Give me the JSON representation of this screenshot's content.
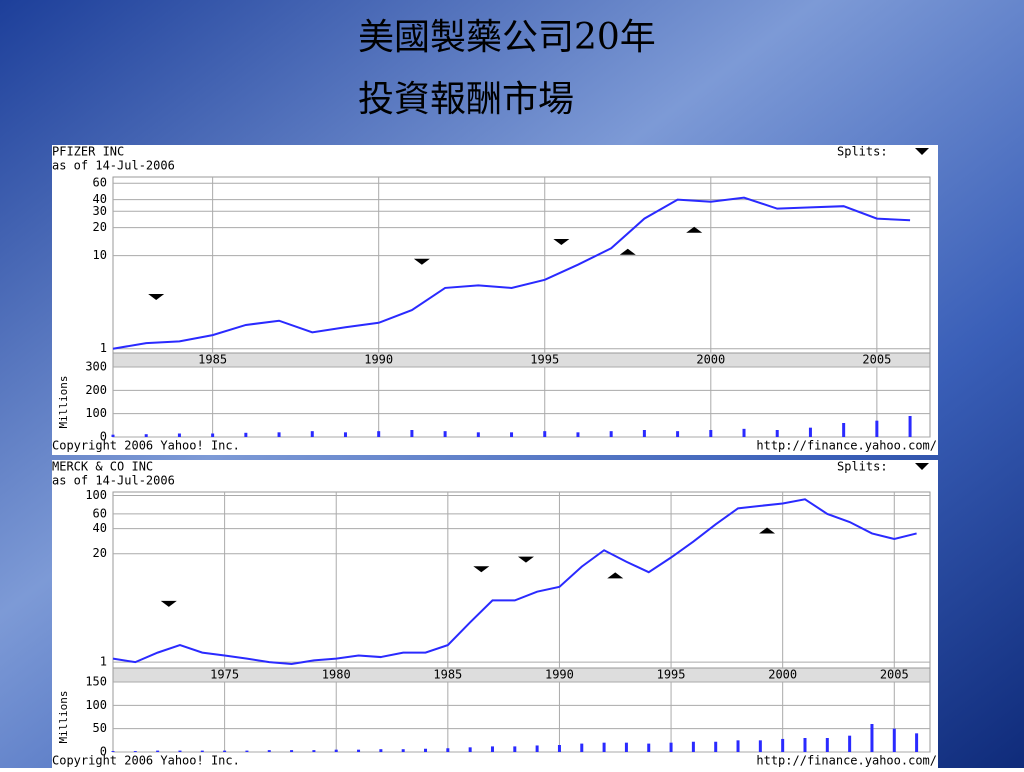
{
  "slide_title": [
    "美國製藥公司20年",
    "投資報酬市場"
  ],
  "chart_data": [
    {
      "type": "stock",
      "title": "PFIZER INC",
      "subtitle": "as of 14-Jul-2006",
      "split_legend": "Splits:",
      "volume_label": "Millions",
      "footer_left": "Copyright 2006 Yahoo! Inc.",
      "footer_right": "http://finance.yahoo.com/",
      "color": "#2a2aff",
      "ylog": true,
      "grid": true,
      "x": [
        1982,
        1983,
        1984,
        1985,
        1986,
        1987,
        1988,
        1989,
        1990,
        1991,
        1992,
        1993,
        1994,
        1995,
        1996,
        1997,
        1998,
        1999,
        2000,
        2001,
        2002,
        2003,
        2004,
        2005,
        2006
      ],
      "values": [
        1.0,
        1.15,
        1.2,
        1.4,
        1.8,
        2.0,
        1.5,
        1.7,
        1.9,
        2.6,
        4.5,
        4.8,
        4.5,
        5.5,
        8,
        12,
        25,
        40,
        38,
        42,
        32,
        33,
        34,
        25,
        24
      ],
      "volume": [
        10,
        12,
        15,
        15,
        18,
        20,
        25,
        20,
        25,
        30,
        25,
        20,
        20,
        25,
        20,
        25,
        30,
        25,
        30,
        35,
        30,
        40,
        60,
        70,
        90
      ],
      "xlim": [
        1982,
        2006.6
      ],
      "xticks": [
        1985,
        1990,
        1995,
        2000,
        2005
      ],
      "ylim": [
        0.9,
        70
      ],
      "yticks": [
        1,
        10,
        20,
        30,
        40,
        60
      ],
      "vlim": [
        0,
        300
      ],
      "vticks": [
        0,
        100,
        200,
        300
      ],
      "markers": [
        {
          "x": 1983.3,
          "y": 3.6,
          "dir": "down"
        },
        {
          "x": 1991.3,
          "y": 8.6,
          "dir": "down"
        },
        {
          "x": 1995.5,
          "y": 14,
          "dir": "down"
        },
        {
          "x": 1997.5,
          "y": 11,
          "dir": "up"
        },
        {
          "x": 1999.5,
          "y": 19,
          "dir": "up"
        }
      ]
    },
    {
      "type": "stock",
      "title": "MERCK & CO INC",
      "subtitle": "as of 14-Jul-2006",
      "split_legend": "Splits:",
      "volume_label": "Millions",
      "footer_left": "Copyright 2006 Yahoo! Inc.",
      "footer_right": "http://finance.yahoo.com/",
      "color": "#2a2aff",
      "ylog": true,
      "grid": true,
      "x": [
        1970,
        1971,
        1972,
        1973,
        1974,
        1975,
        1976,
        1977,
        1978,
        1979,
        1980,
        1981,
        1982,
        1983,
        1984,
        1985,
        1986,
        1987,
        1988,
        1989,
        1990,
        1991,
        1992,
        1993,
        1994,
        1995,
        1996,
        1997,
        1998,
        1999,
        2000,
        2001,
        2002,
        2003,
        2004,
        2005,
        2006
      ],
      "values": [
        1.1,
        1.0,
        1.3,
        1.6,
        1.3,
        1.2,
        1.1,
        1.0,
        0.95,
        1.05,
        1.1,
        1.2,
        1.15,
        1.3,
        1.3,
        1.6,
        3,
        5.5,
        5.5,
        7,
        8,
        14,
        22,
        16,
        12,
        18,
        28,
        45,
        70,
        75,
        80,
        90,
        60,
        48,
        35,
        30,
        35
      ],
      "volume": [
        2,
        2,
        3,
        3,
        3,
        3,
        3,
        4,
        4,
        4,
        5,
        5,
        6,
        6,
        7,
        8,
        10,
        12,
        12,
        14,
        15,
        18,
        20,
        20,
        18,
        20,
        22,
        22,
        25,
        25,
        28,
        30,
        30,
        35,
        60,
        50,
        40
      ],
      "xlim": [
        1970,
        2006.6
      ],
      "xticks": [
        1975,
        1980,
        1985,
        1990,
        1995,
        2000,
        2005
      ],
      "ylim": [
        0.85,
        110
      ],
      "yticks": [
        1,
        20,
        40,
        60,
        100
      ],
      "vlim": [
        0,
        150
      ],
      "vticks": [
        0,
        50,
        100,
        150
      ],
      "markers": [
        {
          "x": 1972.5,
          "y": 5,
          "dir": "down"
        },
        {
          "x": 1986.5,
          "y": 13,
          "dir": "down"
        },
        {
          "x": 1988.5,
          "y": 17,
          "dir": "down"
        },
        {
          "x": 1992.5,
          "y": 11,
          "dir": "up"
        },
        {
          "x": 1999.3,
          "y": 38,
          "dir": "up"
        }
      ]
    }
  ]
}
